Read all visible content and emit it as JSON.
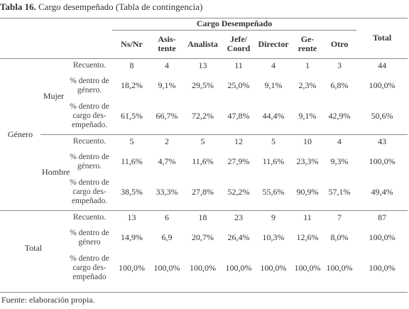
{
  "caption": {
    "number": "Tabla 16.",
    "title": "Cargo desempeñado (Tabla de contingencia)"
  },
  "table": {
    "group_header": "Cargo Desempeñado",
    "columns": [
      "Ns/Nr",
      "Asis-\ntente",
      "Analista",
      "Jefe/\nCoord",
      "Director",
      "Ge-\nrente",
      "Otro"
    ],
    "total_header": "Total",
    "row_group": "Género",
    "measures": [
      "Recuento.",
      "% dentro de género.",
      "% dentro de cargo des-empeñado."
    ],
    "sections": [
      {
        "label": "Mujer",
        "measures": [
          "Recuento.",
          "% dentro de\ngénero.",
          "% dentro de\ncargo des-\nempeñado."
        ],
        "rows": [
          [
            "8",
            "4",
            "13",
            "11",
            "4",
            "1",
            "3",
            "44"
          ],
          [
            "18,2%",
            "9,1%",
            "29,5%",
            "25,0%",
            "9,1%",
            "2,3%",
            "6,8%",
            "100,0%"
          ],
          [
            "61,5%",
            "66,7%",
            "72,2%",
            "47,8%",
            "44,4%",
            "9,1%",
            "42,9%",
            "50,6%"
          ]
        ]
      },
      {
        "label": "Hombre",
        "measures": [
          "Recuento.",
          "% dentro de\ngénero.",
          "% dentro de\ncargo des-\nempeñado."
        ],
        "rows": [
          [
            "5",
            "2",
            "5",
            "12",
            "5",
            "10",
            "4",
            "43"
          ],
          [
            "11,6%",
            "4,7%",
            "11,6%",
            "27,9%",
            "11,6%",
            "23,3%",
            "9,3%",
            "100,0%"
          ],
          [
            "38,5%",
            "33,3%",
            "27,8%",
            "52,2%",
            "55,6%",
            "90,9%",
            "57,1%",
            "49,4%"
          ]
        ]
      },
      {
        "label": "Total",
        "measures": [
          "Recuento.",
          "% dentro de\ngénero",
          "% dentro de\ncargo des-\nempeñado"
        ],
        "rows": [
          [
            "13",
            "6",
            "18",
            "23",
            "9",
            "11",
            "7",
            "87"
          ],
          [
            "14,9%",
            "6,9",
            "20,7%",
            "26,4%",
            "10,3%",
            "12,6%",
            "8,0%",
            "100,0%"
          ],
          [
            "100,0%",
            "100,0%",
            "100,0%",
            "100,0%",
            "100,0%",
            "100,0%",
            "100,0%",
            "100,0%"
          ]
        ]
      }
    ]
  },
  "source": "Fuente: elaboración propia."
}
